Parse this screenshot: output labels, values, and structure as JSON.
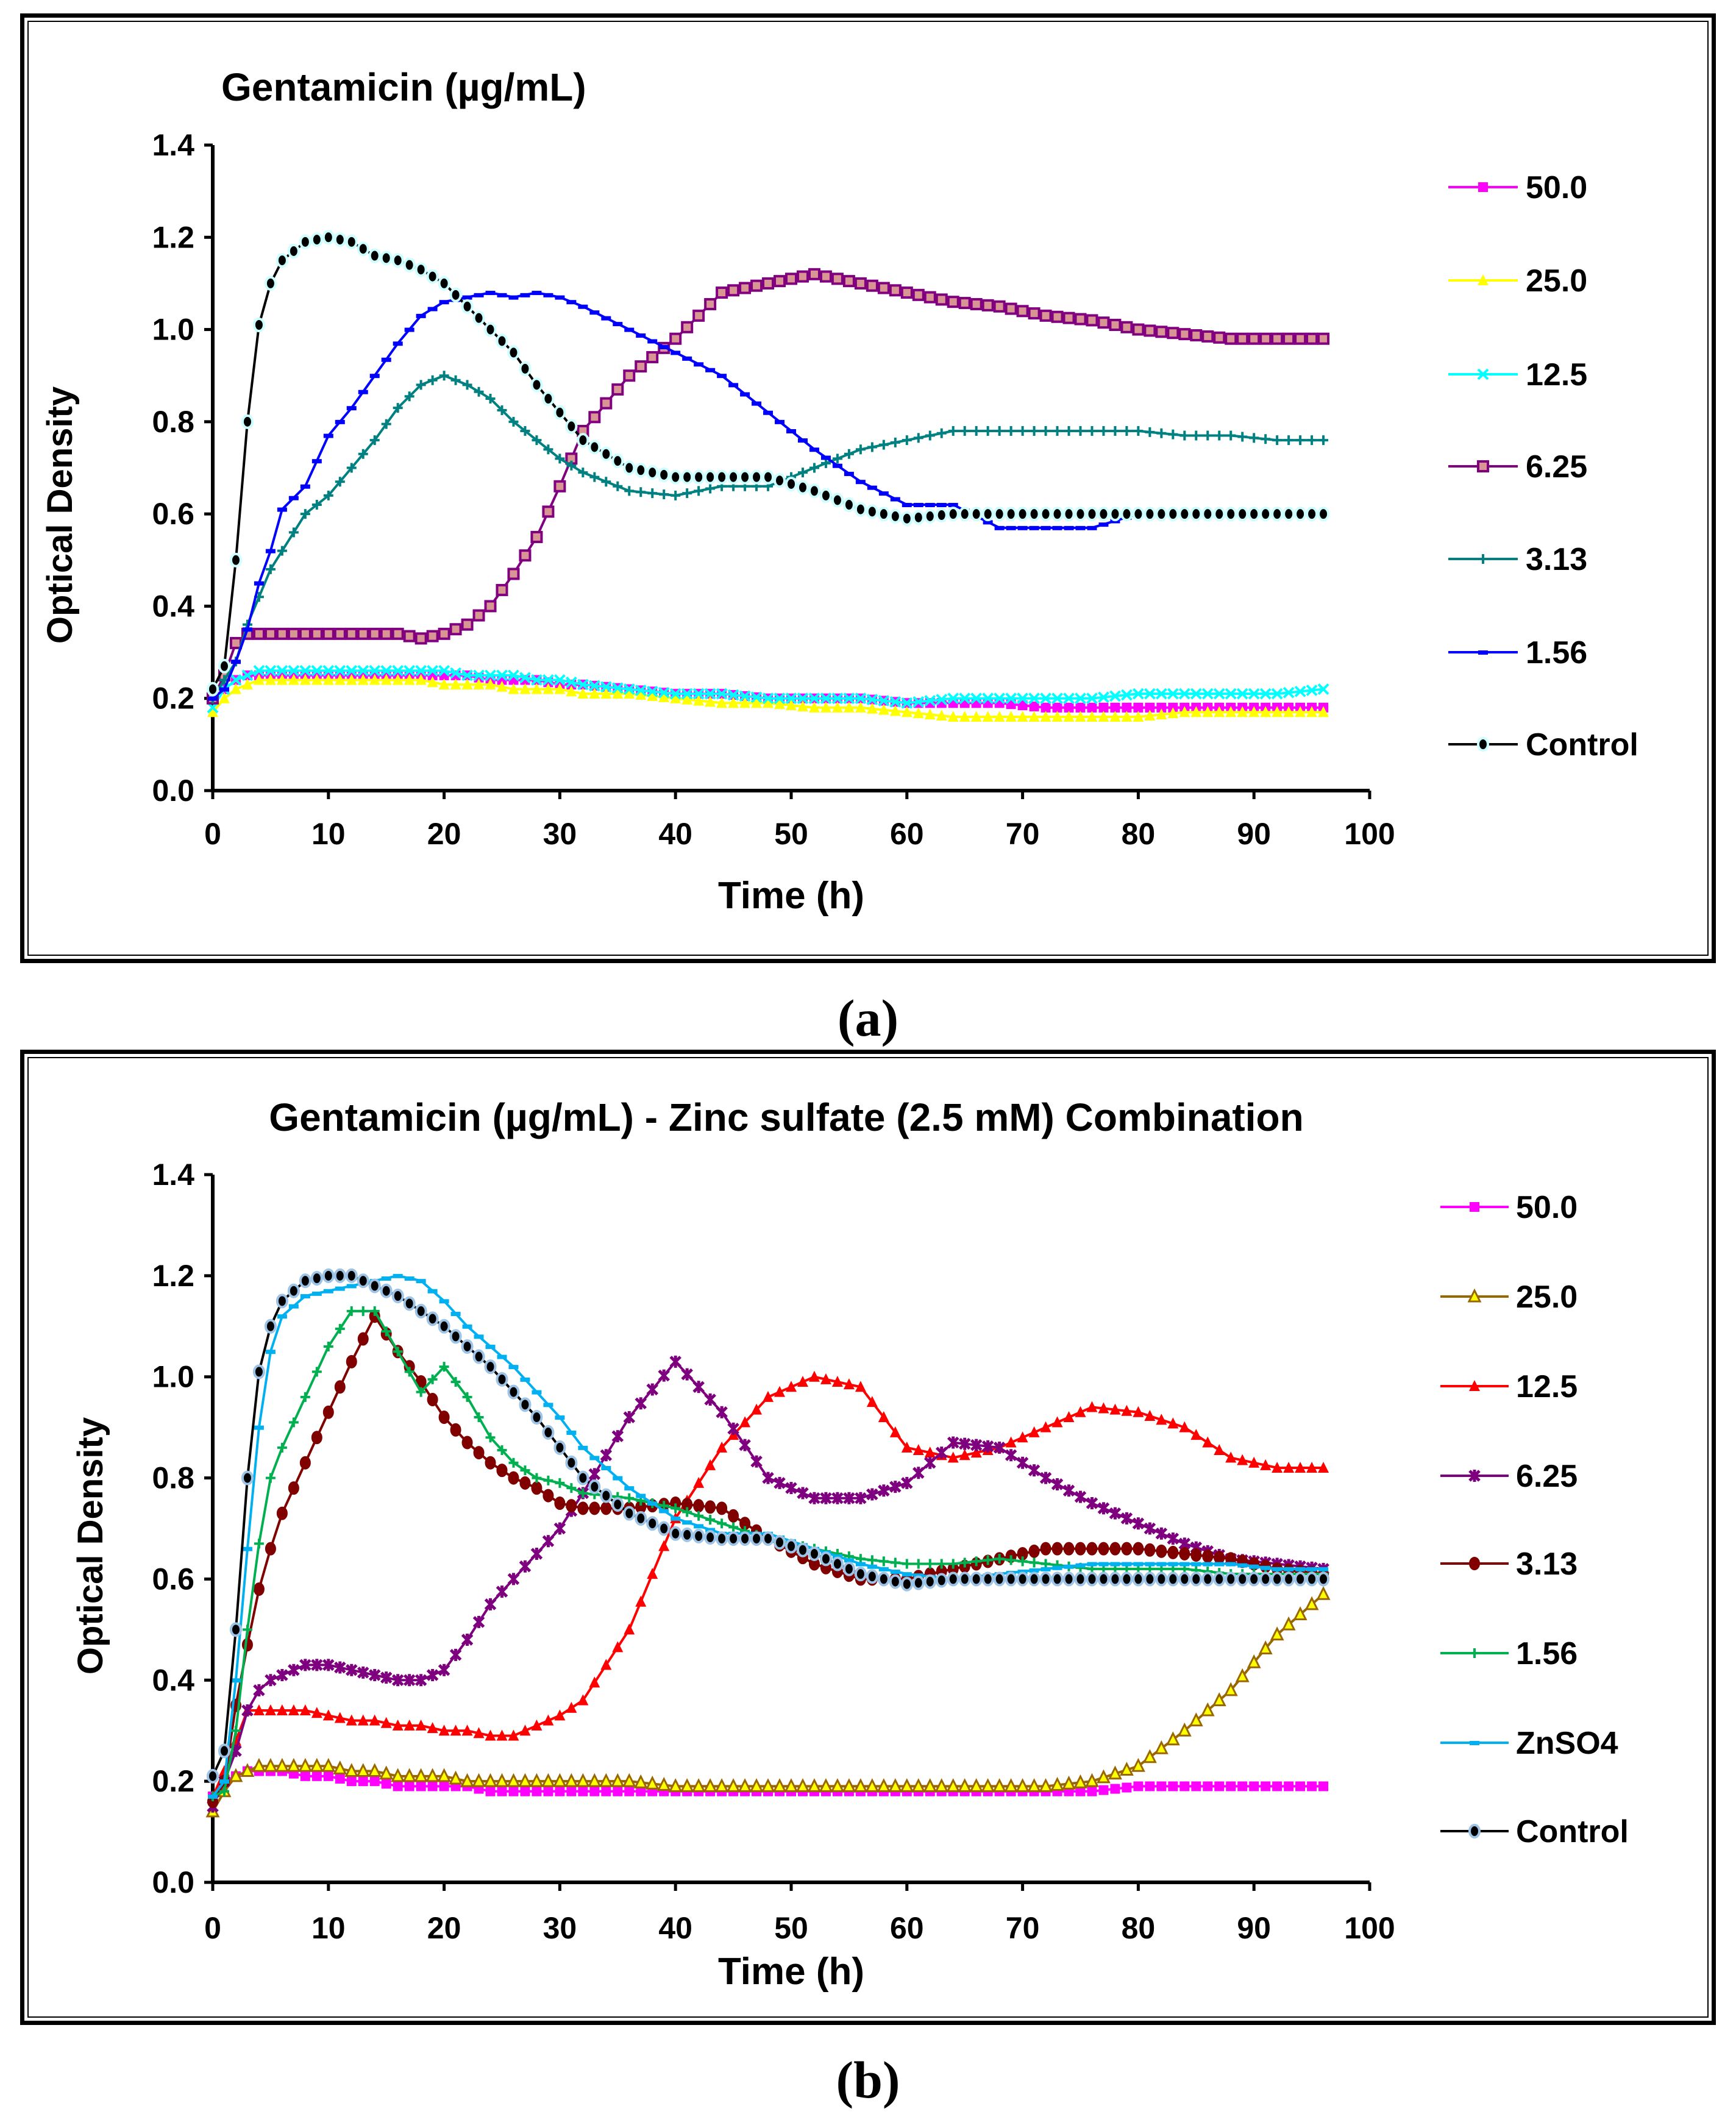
{
  "captions": [
    "(a)",
    "(b)"
  ],
  "chart_data": [
    {
      "type": "line",
      "title": "Gentamicin (µg/mL)",
      "xlabel": "Time (h)",
      "ylabel": "Optical Density",
      "xlim": [
        0,
        100
      ],
      "ylim": [
        0,
        1.4
      ],
      "x_ticks": [
        "0",
        "10",
        "20",
        "30",
        "40",
        "50",
        "60",
        "70",
        "80",
        "90",
        "100"
      ],
      "y_ticks": [
        "0.0",
        "0.2",
        "0.4",
        "0.6",
        "0.8",
        "1.0",
        "1.2",
        "1.4"
      ],
      "grid": false,
      "legend_position": "right",
      "x": [
        0,
        1,
        2,
        3,
        4,
        5,
        6,
        8,
        10,
        12,
        14,
        16,
        18,
        20,
        22,
        24,
        26,
        28,
        30,
        32,
        36,
        40,
        44,
        48,
        52,
        56,
        60,
        64,
        68,
        72,
        76,
        80,
        84,
        88,
        92,
        96
      ],
      "series": [
        {
          "name": "50.0",
          "marker": "square",
          "color": "#FF00FF",
          "fill": "#FF00FF",
          "values": [
            0.2,
            0.22,
            0.24,
            0.25,
            0.25,
            0.25,
            0.25,
            0.25,
            0.25,
            0.25,
            0.25,
            0.25,
            0.25,
            0.25,
            0.25,
            0.24,
            0.24,
            0.24,
            0.23,
            0.23,
            0.22,
            0.21,
            0.21,
            0.2,
            0.2,
            0.2,
            0.19,
            0.19,
            0.19,
            0.18,
            0.18,
            0.18,
            0.18,
            0.18,
            0.18,
            0.18
          ]
        },
        {
          "name": "25.0",
          "marker": "triangle",
          "color": "#FFFF00",
          "fill": "#FFFF00",
          "values": [
            0.17,
            0.2,
            0.22,
            0.23,
            0.24,
            0.24,
            0.24,
            0.24,
            0.24,
            0.24,
            0.24,
            0.24,
            0.24,
            0.23,
            0.23,
            0.23,
            0.22,
            0.22,
            0.22,
            0.21,
            0.21,
            0.2,
            0.19,
            0.19,
            0.18,
            0.18,
            0.17,
            0.16,
            0.16,
            0.16,
            0.16,
            0.16,
            0.17,
            0.17,
            0.17,
            0.17
          ]
        },
        {
          "name": "12.5",
          "marker": "x",
          "color": "#00FFFF",
          "fill": "#00FFFF",
          "values": [
            0.18,
            0.22,
            0.24,
            0.25,
            0.26,
            0.26,
            0.26,
            0.26,
            0.26,
            0.26,
            0.26,
            0.26,
            0.26,
            0.26,
            0.25,
            0.25,
            0.25,
            0.24,
            0.24,
            0.23,
            0.22,
            0.21,
            0.21,
            0.2,
            0.2,
            0.2,
            0.19,
            0.2,
            0.2,
            0.2,
            0.2,
            0.21,
            0.21,
            0.21,
            0.21,
            0.22
          ]
        },
        {
          "name": "6.25",
          "marker": "square-outline",
          "color": "#800080",
          "fill": "#D99594",
          "values": [
            0.2,
            0.25,
            0.32,
            0.34,
            0.34,
            0.34,
            0.34,
            0.34,
            0.34,
            0.34,
            0.34,
            0.34,
            0.33,
            0.34,
            0.36,
            0.4,
            0.47,
            0.55,
            0.66,
            0.78,
            0.9,
            0.98,
            1.08,
            1.1,
            1.12,
            1.1,
            1.08,
            1.06,
            1.05,
            1.03,
            1.02,
            1.0,
            0.99,
            0.98,
            0.98,
            0.98
          ]
        },
        {
          "name": "3.13",
          "marker": "plus",
          "color": "#008080",
          "fill": "#008080",
          "values": [
            0.2,
            0.24,
            0.28,
            0.36,
            0.42,
            0.48,
            0.52,
            0.6,
            0.64,
            0.7,
            0.76,
            0.83,
            0.88,
            0.9,
            0.88,
            0.85,
            0.8,
            0.76,
            0.72,
            0.69,
            0.65,
            0.64,
            0.66,
            0.66,
            0.7,
            0.74,
            0.76,
            0.78,
            0.78,
            0.78,
            0.78,
            0.78,
            0.77,
            0.77,
            0.76,
            0.76
          ]
        },
        {
          "name": "1.56",
          "marker": "dash",
          "color": "#0000FF",
          "fill": "#0000FF",
          "values": [
            0.2,
            0.22,
            0.28,
            0.35,
            0.45,
            0.52,
            0.61,
            0.66,
            0.77,
            0.83,
            0.9,
            0.97,
            1.03,
            1.06,
            1.07,
            1.08,
            1.07,
            1.08,
            1.07,
            1.05,
            1.0,
            0.95,
            0.9,
            0.82,
            0.74,
            0.67,
            0.62,
            0.62,
            0.57,
            0.57,
            0.57,
            0.6,
            0.6,
            0.6,
            0.6,
            0.6
          ]
        },
        {
          "name": "Control",
          "marker": "circle",
          "color": "#000000",
          "fill": "#000000",
          "outline": "#CCFFFF",
          "values": [
            0.22,
            0.27,
            0.5,
            0.8,
            1.01,
            1.1,
            1.15,
            1.19,
            1.2,
            1.19,
            1.16,
            1.15,
            1.13,
            1.1,
            1.05,
            1.0,
            0.95,
            0.88,
            0.82,
            0.76,
            0.7,
            0.68,
            0.68,
            0.68,
            0.65,
            0.61,
            0.59,
            0.6,
            0.6,
            0.6,
            0.6,
            0.6,
            0.6,
            0.6,
            0.6,
            0.6
          ]
        }
      ]
    },
    {
      "type": "line",
      "title": "Gentamicin (µg/mL) - Zinc sulfate (2.5 mM) Combination",
      "xlabel": "Time (h)",
      "ylabel": "Optical Density",
      "xlim": [
        0,
        100
      ],
      "ylim": [
        0,
        1.4
      ],
      "x_ticks": [
        "0",
        "10",
        "20",
        "30",
        "40",
        "50",
        "60",
        "70",
        "80",
        "90",
        "100"
      ],
      "y_ticks": [
        "0.0",
        "0.2",
        "0.4",
        "0.6",
        "0.8",
        "1.0",
        "1.2",
        "1.4"
      ],
      "grid": false,
      "legend_position": "right",
      "x": [
        0,
        1,
        2,
        3,
        4,
        5,
        6,
        8,
        10,
        12,
        14,
        16,
        18,
        20,
        22,
        24,
        26,
        28,
        30,
        32,
        36,
        40,
        44,
        48,
        52,
        56,
        60,
        64,
        68,
        72,
        76,
        80,
        84,
        88,
        92,
        96
      ],
      "series": [
        {
          "name": "50.0",
          "marker": "square",
          "color": "#FF00FF",
          "fill": "#FF00FF",
          "values": [
            0.17,
            0.2,
            0.21,
            0.22,
            0.22,
            0.22,
            0.22,
            0.21,
            0.21,
            0.2,
            0.2,
            0.19,
            0.19,
            0.19,
            0.19,
            0.18,
            0.18,
            0.18,
            0.18,
            0.18,
            0.18,
            0.18,
            0.18,
            0.18,
            0.18,
            0.18,
            0.18,
            0.18,
            0.18,
            0.18,
            0.18,
            0.19,
            0.19,
            0.19,
            0.19,
            0.19
          ]
        },
        {
          "name": "25.0",
          "marker": "triangle-outline",
          "color": "#996600",
          "fill": "#FFFF00",
          "values": [
            0.14,
            0.18,
            0.21,
            0.22,
            0.23,
            0.23,
            0.23,
            0.23,
            0.23,
            0.22,
            0.22,
            0.21,
            0.21,
            0.21,
            0.2,
            0.2,
            0.2,
            0.2,
            0.2,
            0.2,
            0.2,
            0.19,
            0.19,
            0.19,
            0.19,
            0.19,
            0.19,
            0.19,
            0.19,
            0.19,
            0.2,
            0.23,
            0.3,
            0.38,
            0.49,
            0.57
          ]
        },
        {
          "name": "12.5",
          "marker": "triangle",
          "color": "#FF0000",
          "fill": "#FF0000",
          "values": [
            0.17,
            0.22,
            0.28,
            0.34,
            0.34,
            0.34,
            0.34,
            0.34,
            0.33,
            0.32,
            0.32,
            0.31,
            0.31,
            0.3,
            0.3,
            0.29,
            0.29,
            0.31,
            0.33,
            0.36,
            0.5,
            0.72,
            0.86,
            0.96,
            1.0,
            0.98,
            0.86,
            0.84,
            0.86,
            0.9,
            0.94,
            0.93,
            0.9,
            0.84,
            0.82,
            0.82
          ]
        },
        {
          "name": "6.25",
          "marker": "asterisk",
          "color": "#7F007F",
          "fill": "#7F007F",
          "values": [
            0.15,
            0.2,
            0.26,
            0.34,
            0.38,
            0.4,
            0.41,
            0.43,
            0.43,
            0.42,
            0.41,
            0.4,
            0.4,
            0.42,
            0.48,
            0.55,
            0.6,
            0.65,
            0.7,
            0.77,
            0.92,
            1.03,
            0.93,
            0.8,
            0.76,
            0.76,
            0.79,
            0.87,
            0.86,
            0.8,
            0.75,
            0.71,
            0.67,
            0.64,
            0.63,
            0.62
          ]
        },
        {
          "name": "3.13",
          "marker": "circle",
          "color": "#800000",
          "fill": "#800000",
          "values": [
            0.16,
            0.2,
            0.35,
            0.47,
            0.58,
            0.66,
            0.73,
            0.83,
            0.93,
            1.03,
            1.12,
            1.05,
            0.99,
            0.92,
            0.87,
            0.83,
            0.8,
            0.78,
            0.75,
            0.74,
            0.74,
            0.75,
            0.74,
            0.68,
            0.63,
            0.6,
            0.6,
            0.62,
            0.64,
            0.66,
            0.66,
            0.66,
            0.65,
            0.64,
            0.62,
            0.61
          ]
        },
        {
          "name": "1.56",
          "marker": "plus",
          "color": "#00B050",
          "fill": "#00B050",
          "values": [
            0.17,
            0.18,
            0.3,
            0.5,
            0.67,
            0.8,
            0.86,
            0.96,
            1.06,
            1.13,
            1.13,
            1.05,
            0.97,
            1.02,
            0.96,
            0.88,
            0.83,
            0.8,
            0.79,
            0.77,
            0.76,
            0.74,
            0.71,
            0.68,
            0.66,
            0.64,
            0.63,
            0.63,
            0.64,
            0.63,
            0.62,
            0.62,
            0.62,
            0.61,
            0.61,
            0.61
          ]
        },
        {
          "name": "ZnSO4",
          "marker": "dash",
          "color": "#00B0F0",
          "fill": "#00B0F0",
          "values": [
            0.17,
            0.2,
            0.4,
            0.66,
            0.9,
            1.05,
            1.12,
            1.16,
            1.17,
            1.18,
            1.19,
            1.2,
            1.19,
            1.15,
            1.1,
            1.06,
            1.02,
            0.97,
            0.92,
            0.86,
            0.78,
            0.72,
            0.69,
            0.69,
            0.66,
            0.63,
            0.61,
            0.6,
            0.61,
            0.62,
            0.63,
            0.63,
            0.63,
            0.63,
            0.62,
            0.62
          ]
        },
        {
          "name": "Control",
          "marker": "circle",
          "color": "#000000",
          "fill": "#000000",
          "outline": "#9DC3E6",
          "values": [
            0.21,
            0.26,
            0.5,
            0.8,
            1.01,
            1.1,
            1.15,
            1.19,
            1.2,
            1.2,
            1.18,
            1.16,
            1.13,
            1.1,
            1.06,
            1.02,
            0.97,
            0.92,
            0.86,
            0.8,
            0.73,
            0.69,
            0.68,
            0.68,
            0.65,
            0.61,
            0.59,
            0.6,
            0.6,
            0.6,
            0.6,
            0.6,
            0.6,
            0.6,
            0.6,
            0.6
          ]
        }
      ]
    }
  ]
}
